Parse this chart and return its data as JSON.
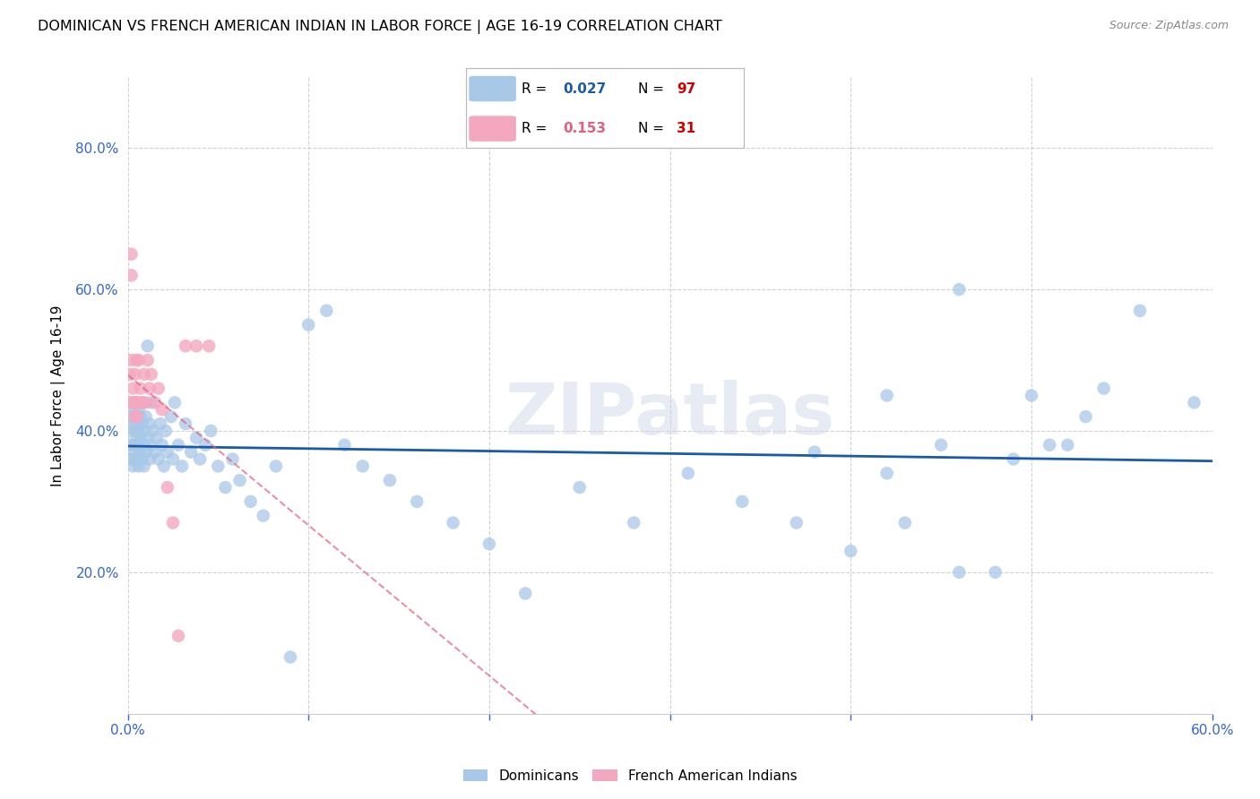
{
  "title": "DOMINICAN VS FRENCH AMERICAN INDIAN IN LABOR FORCE | AGE 16-19 CORRELATION CHART",
  "source": "Source: ZipAtlas.com",
  "ylabel": "In Labor Force | Age 16-19",
  "xlim": [
    0.0,
    0.6
  ],
  "ylim": [
    0.0,
    0.9
  ],
  "xticks": [
    0.0,
    0.1,
    0.2,
    0.3,
    0.4,
    0.5,
    0.6
  ],
  "xticklabels": [
    "0.0%",
    "",
    "",
    "",
    "",
    "",
    "60.0%"
  ],
  "yticks": [
    0.0,
    0.2,
    0.4,
    0.6,
    0.8
  ],
  "yticklabels": [
    "",
    "20.0%",
    "40.0%",
    "60.0%",
    "80.0%"
  ],
  "grid_color": "#cccccc",
  "blue_scatter_color": "#a8c8e8",
  "pink_scatter_color": "#f4a8c0",
  "blue_line_color": "#1a5aaa",
  "pink_line_color": "#e06080",
  "axis_label_color": "#3366cc",
  "watermark_text": "ZIPatlas",
  "legend_r_blue": "0.027",
  "legend_n_blue": "97",
  "legend_r_pink": "0.153",
  "legend_n_pink": "31",
  "legend_n_color": "#cc0000",
  "dominicans_x": [
    0.001,
    0.001,
    0.002,
    0.002,
    0.002,
    0.003,
    0.003,
    0.003,
    0.003,
    0.004,
    0.004,
    0.004,
    0.004,
    0.005,
    0.005,
    0.005,
    0.005,
    0.006,
    0.006,
    0.006,
    0.006,
    0.007,
    0.007,
    0.007,
    0.008,
    0.008,
    0.008,
    0.009,
    0.009,
    0.009,
    0.01,
    0.01,
    0.011,
    0.011,
    0.012,
    0.012,
    0.013,
    0.013,
    0.014,
    0.015,
    0.016,
    0.017,
    0.018,
    0.019,
    0.02,
    0.021,
    0.022,
    0.024,
    0.025,
    0.026,
    0.028,
    0.03,
    0.032,
    0.035,
    0.038,
    0.04,
    0.043,
    0.046,
    0.05,
    0.054,
    0.058,
    0.062,
    0.068,
    0.075,
    0.082,
    0.09,
    0.1,
    0.11,
    0.12,
    0.13,
    0.145,
    0.16,
    0.18,
    0.2,
    0.22,
    0.25,
    0.28,
    0.31,
    0.34,
    0.37,
    0.4,
    0.42,
    0.45,
    0.48,
    0.51,
    0.54,
    0.38,
    0.42,
    0.46,
    0.5,
    0.53,
    0.56,
    0.59,
    0.43,
    0.46,
    0.49,
    0.52
  ],
  "dominicans_y": [
    0.38,
    0.4,
    0.42,
    0.36,
    0.44,
    0.38,
    0.41,
    0.35,
    0.43,
    0.37,
    0.4,
    0.36,
    0.44,
    0.39,
    0.38,
    0.41,
    0.36,
    0.43,
    0.38,
    0.4,
    0.35,
    0.42,
    0.37,
    0.39,
    0.41,
    0.36,
    0.44,
    0.38,
    0.4,
    0.35,
    0.42,
    0.37,
    0.52,
    0.39,
    0.41,
    0.36,
    0.44,
    0.38,
    0.4,
    0.37,
    0.39,
    0.36,
    0.41,
    0.38,
    0.35,
    0.4,
    0.37,
    0.42,
    0.36,
    0.44,
    0.38,
    0.35,
    0.41,
    0.37,
    0.39,
    0.36,
    0.38,
    0.4,
    0.35,
    0.32,
    0.36,
    0.33,
    0.3,
    0.28,
    0.35,
    0.08,
    0.55,
    0.57,
    0.38,
    0.35,
    0.33,
    0.3,
    0.27,
    0.24,
    0.17,
    0.32,
    0.27,
    0.34,
    0.3,
    0.27,
    0.23,
    0.34,
    0.38,
    0.2,
    0.38,
    0.46,
    0.37,
    0.45,
    0.6,
    0.45,
    0.42,
    0.57,
    0.44,
    0.27,
    0.2,
    0.36,
    0.38
  ],
  "french_x": [
    0.001,
    0.001,
    0.002,
    0.002,
    0.002,
    0.003,
    0.003,
    0.004,
    0.004,
    0.004,
    0.005,
    0.005,
    0.005,
    0.006,
    0.006,
    0.007,
    0.008,
    0.009,
    0.01,
    0.011,
    0.012,
    0.013,
    0.015,
    0.017,
    0.019,
    0.022,
    0.025,
    0.028,
    0.032,
    0.038,
    0.045
  ],
  "french_y": [
    0.44,
    0.48,
    0.5,
    0.62,
    0.65,
    0.44,
    0.46,
    0.42,
    0.44,
    0.48,
    0.44,
    0.5,
    0.42,
    0.44,
    0.5,
    0.46,
    0.44,
    0.48,
    0.44,
    0.5,
    0.46,
    0.48,
    0.44,
    0.46,
    0.43,
    0.32,
    0.27,
    0.11,
    0.52,
    0.52,
    0.52
  ],
  "blue_reg_slope": 0.027,
  "blue_reg_intercept": 0.355,
  "pink_reg_slope": 3.5,
  "pink_reg_intercept": 0.42
}
